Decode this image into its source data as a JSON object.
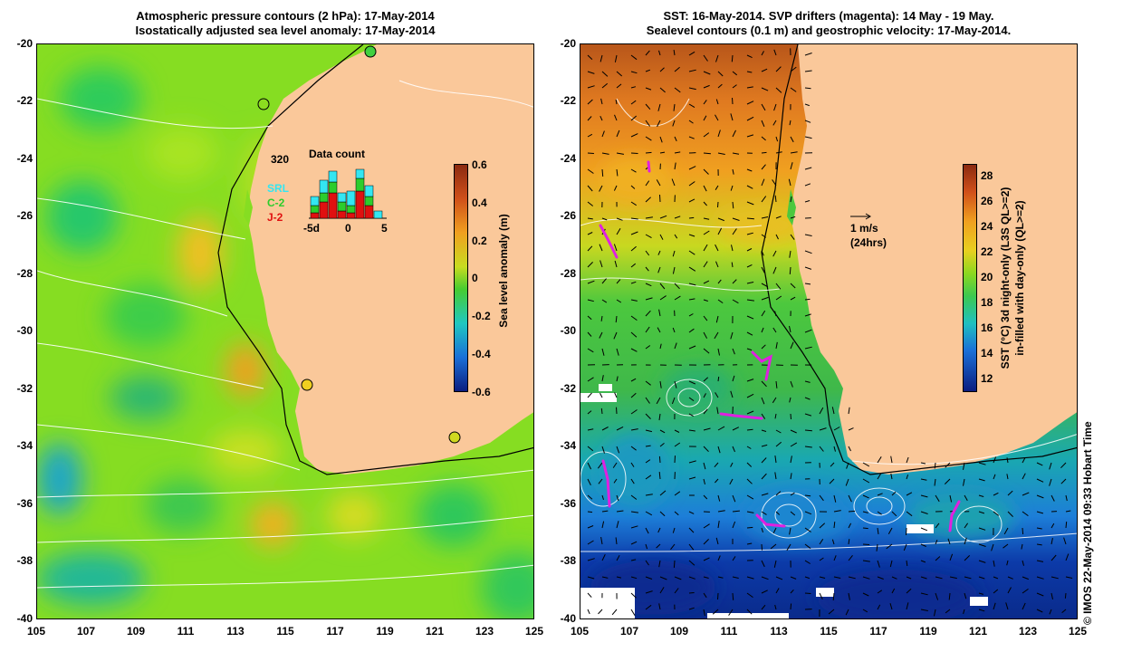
{
  "left_panel": {
    "title_line1": "Atmospheric pressure contours (2 hPa): 17-May-2014",
    "title_line2": "Isostatically adjusted sea level anomaly: 17-May-2014",
    "colorbar_label": "Sea level anomaly (m)",
    "colorbar_ticks": [
      "0.6",
      "0.4",
      "0.2",
      "0",
      "-0.2",
      "-0.4",
      "-0.6"
    ],
    "inset": {
      "title": "Data count",
      "max_label": "320",
      "legend": [
        {
          "name": "SRL",
          "color": "#33e6f2"
        },
        {
          "name": "C-2",
          "color": "#2ccd2c"
        },
        {
          "name": "J-2",
          "color": "#e01010"
        }
      ],
      "x_ticks": [
        "-5d",
        "0",
        "5"
      ]
    }
  },
  "right_panel": {
    "title_line1": "SST: 16-May-2014. SVP drifters (magenta): 14 May - 19 May.",
    "title_line2": "Sealevel contours (0.1 m) and geostrophic velocity: 17-May-2014.",
    "colorbar_label_line1": "SST (°C)  3d night-only (L3S QL>=2)",
    "colorbar_label_line2": "in-filled with day-only (QL>=2)",
    "colorbar_ticks": [
      "28",
      "26",
      "24",
      "22",
      "20",
      "18",
      "16",
      "14",
      "12"
    ],
    "velocity_scale_label": "1 m/s",
    "velocity_scale_sub": "(24hrs)"
  },
  "axes": {
    "y_ticks": [
      "-20",
      "-22",
      "-24",
      "-26",
      "-28",
      "-30",
      "-32",
      "-34",
      "-36",
      "-38",
      "-40"
    ],
    "x_ticks": [
      "105",
      "107",
      "109",
      "111",
      "113",
      "115",
      "117",
      "119",
      "121",
      "123",
      "125"
    ]
  },
  "credit": "© IMOS 22-May-2014 09:33 Hobart Time",
  "colors": {
    "land": "#fac89a",
    "sla_bg": "#86dd22",
    "sst_warm": "#e07a20",
    "sst_mid": "#3fb84a",
    "sst_cool": "#1d7ed8",
    "sst_cold": "#0c2e9a",
    "drifter": "#e020e0"
  }
}
